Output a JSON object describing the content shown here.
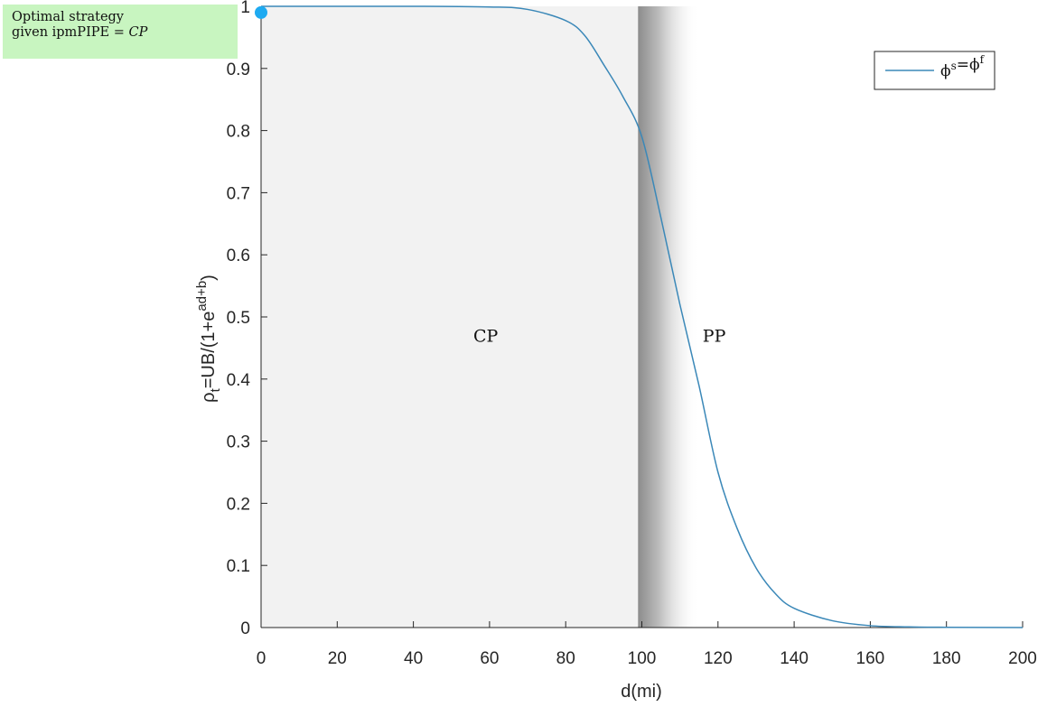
{
  "annotation": {
    "line1": "Optimal strategy",
    "line2": "given ipmPIPE = ",
    "line2_value": "CP"
  },
  "regions": [
    {
      "label": "CP",
      "x_from": 0,
      "x_to": 99,
      "color": "#f2f2f2"
    },
    {
      "label": "PP",
      "x_from": 99,
      "x_to": 115,
      "color": "gradient-gray"
    }
  ],
  "chart_data": {
    "type": "line",
    "xlabel": "d(mi)",
    "ylabel": "ρt=UB/(1+e^(ad+b))",
    "xlim": [
      0,
      200
    ],
    "ylim": [
      0,
      1
    ],
    "xticks": [
      0,
      20,
      40,
      60,
      80,
      100,
      120,
      140,
      160,
      180,
      200
    ],
    "yticks": [
      0,
      0.1,
      0.2,
      0.3,
      0.4,
      0.5,
      0.6,
      0.7,
      0.8,
      0.9,
      1
    ],
    "ytick_labels": [
      "0",
      "0.1",
      "0.2",
      "0.3",
      "0.4",
      "0.5",
      "0.6",
      "0.7",
      "0.8",
      "0.9",
      "1"
    ],
    "grid": false,
    "legend_placement": "top-right",
    "series": [
      {
        "name": "ϕs=ϕf",
        "color": "#3b88b8",
        "x": [
          0,
          40,
          60,
          70,
          80,
          85,
          90,
          95,
          100,
          105,
          110,
          115,
          120,
          125,
          130,
          135,
          140,
          150,
          160,
          170,
          180,
          200
        ],
        "y": [
          1,
          1,
          0.999,
          0.995,
          0.977,
          0.953,
          0.906,
          0.855,
          0.79,
          0.66,
          0.52,
          0.39,
          0.25,
          0.16,
          0.096,
          0.055,
          0.031,
          0.011,
          0.003,
          0.001,
          0.0004,
          0.0
        ]
      }
    ],
    "marker": {
      "x": 0,
      "y": 0.99,
      "color": "#1eaaf1"
    }
  }
}
